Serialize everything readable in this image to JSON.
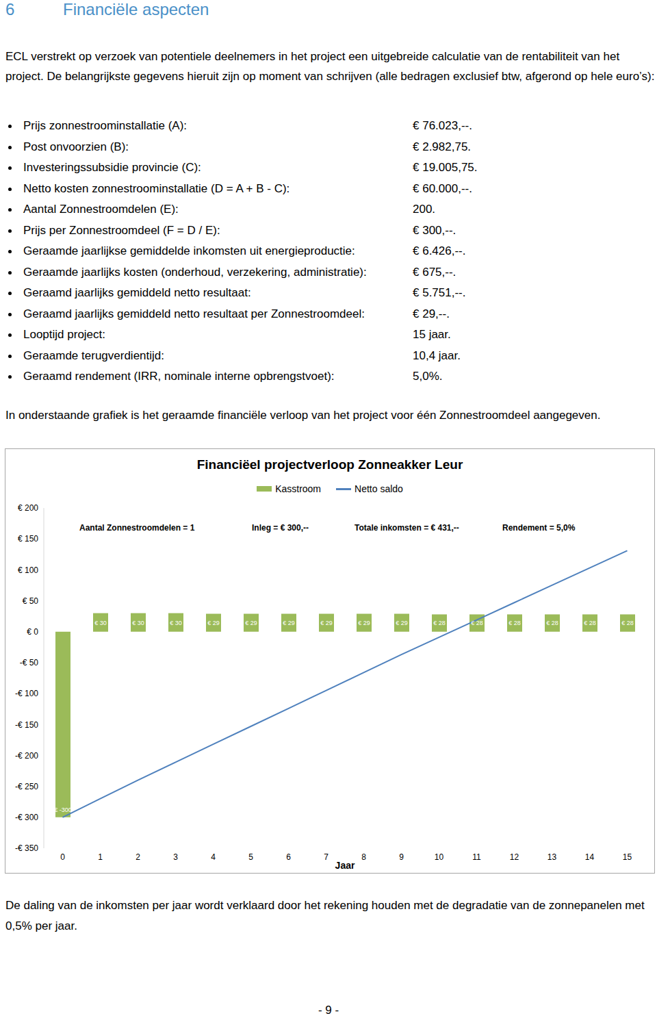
{
  "heading": {
    "number": "6",
    "title": "Financiële aspecten"
  },
  "intro": "ECL verstrekt op verzoek van potentiele deelnemers in het project een uitgebreide calculatie van de rentabiliteit van het project. De belangrijkste gegevens hieruit zijn op moment van schrijven (alle bedragen exclusief btw, afgerond op hele euro’s):",
  "items": [
    {
      "label": "Prijs zonnestroominstallatie (A):",
      "value": "€ 76.023,--."
    },
    {
      "label": "Post onvoorzien (B):",
      "value": "€ 2.982,75."
    },
    {
      "label": "Investeringssubsidie provincie (C):",
      "value": "€ 19.005,75."
    },
    {
      "label": "Netto kosten zonnestroominstallatie (D = A + B - C):",
      "value": "€ 60.000,--."
    },
    {
      "label": "Aantal Zonnestroomdelen (E):",
      "value": "200."
    },
    {
      "label": "Prijs per Zonnestroomdeel (F = D / E):",
      "value": "€ 300,--."
    },
    {
      "label": "Geraamde jaarlijkse gemiddelde inkomsten uit energieproductie:",
      "value": "€ 6.426,--."
    },
    {
      "label": "Geraamde jaarlijks kosten (onderhoud, verzekering, administratie):",
      "value": "€ 675,--."
    },
    {
      "label": "Geraamd jaarlijks gemiddeld netto resultaat:",
      "value": "€ 5.751,--."
    },
    {
      "label": "Geraamd jaarlijks gemiddeld netto resultaat per Zonnestroomdeel:",
      "value": "€ 29,--."
    },
    {
      "label": "Looptijd project:",
      "value": "15 jaar."
    },
    {
      "label": "Geraamde terugverdientijd:",
      "value": "10,4 jaar."
    },
    {
      "label": "Geraamd rendement (IRR, nominale interne opbrengstvoet):",
      "value": "5,0%."
    }
  ],
  "chart_intro": "In onderstaande grafiek is het geraamde financiële verloop van het project voor één Zonnestroomdeel aangegeven.",
  "chart_data": {
    "type": "bar",
    "title": "Financiëel projectverloop Zonneakker Leur",
    "annotations": [
      "Aantal Zonnestroomdelen = 1",
      "Inleg = € 300,--",
      "Totale inkomsten = € 431,--",
      "Rendement = 5,0%"
    ],
    "xlabel": "Jaar",
    "categories": [
      "0",
      "1",
      "2",
      "3",
      "4",
      "5",
      "6",
      "7",
      "8",
      "9",
      "10",
      "11",
      "12",
      "13",
      "14",
      "15"
    ],
    "series": [
      {
        "name": "Kasstroom",
        "type": "bar",
        "color": "#9bbb59",
        "data_labels": true,
        "values": [
          -300,
          30,
          30,
          30,
          29,
          29,
          29,
          29,
          29,
          29,
          28,
          28,
          28,
          28,
          28,
          28
        ],
        "value_labels": [
          "€ -300",
          "€ 30",
          "€ 30",
          "€ 30",
          "€ 29",
          "€ 29",
          "€ 29",
          "€ 29",
          "€ 29",
          "€ 29",
          "€ 28",
          "€ 28",
          "€ 28",
          "€ 28",
          "€ 28",
          "€ 28"
        ]
      },
      {
        "name": "Netto saldo",
        "type": "line",
        "color": "#4f81bd",
        "values": [
          -300,
          -270,
          -240,
          -211,
          -182,
          -153,
          -124,
          -95,
          -66,
          -37,
          -9,
          19,
          47,
          75,
          103,
          131
        ]
      }
    ],
    "ylim": [
      -350,
      200
    ],
    "yticks": [
      {
        "value": -350,
        "label": "-€ 350"
      },
      {
        "value": -300,
        "label": "-€ 300"
      },
      {
        "value": -250,
        "label": "-€ 250"
      },
      {
        "value": -200,
        "label": "-€ 200"
      },
      {
        "value": -150,
        "label": "-€ 150"
      },
      {
        "value": -100,
        "label": "-€ 100"
      },
      {
        "value": -50,
        "label": "-€ 50"
      },
      {
        "value": 0,
        "label": "€ 0"
      },
      {
        "value": 50,
        "label": "€ 50"
      },
      {
        "value": 100,
        "label": "€ 100"
      },
      {
        "value": 150,
        "label": "€ 150"
      },
      {
        "value": 200,
        "label": "€ 200"
      }
    ],
    "grid": false,
    "legend": "top"
  },
  "footer": "De daling van de inkomsten per jaar wordt verklaard door het rekening houden met de degradatie van de zonnepanelen met 0,5% per jaar.",
  "page_number": "- 9 -"
}
